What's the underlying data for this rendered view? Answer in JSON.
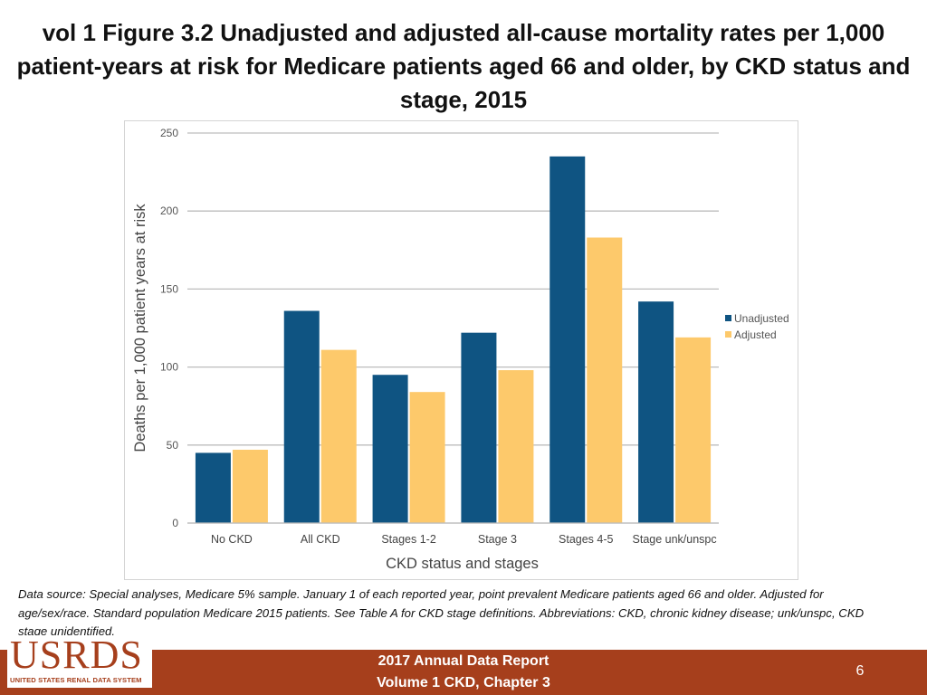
{
  "slide": {
    "title": "vol 1 Figure 3.2 Unadjusted and adjusted all-cause mortality rates per 1,000 patient-years at risk for Medicare patients aged 66 and older, by CKD status and stage, 2015",
    "caption": "Data source: Special analyses, Medicare 5% sample. January 1 of each reported year, point prevalent Medicare patients aged 66 and older. Adjusted for age/sex/race. Standard population Medicare 2015 patients. See Table A for CKD stage definitions. Abbreviations: CKD, chronic kidney disease; unk/unspc, CKD stage unidentified."
  },
  "footer": {
    "logo": "USRDS",
    "logo_sub": "UNITED STATES RENAL DATA SYSTEM",
    "line1": "2017 Annual Data Report",
    "line2": "Volume 1 CKD, Chapter 3",
    "page_number": "6",
    "bar_color": "#a63f1c"
  },
  "chart_data": {
    "type": "bar",
    "title": "",
    "xlabel": "CKD status and stages",
    "ylabel": "Deaths per 1,000 patient years at risk",
    "categories": [
      "No CKD",
      "All CKD",
      "Stages 1-2",
      "Stage 3",
      "Stages 4-5",
      "Stage unk/unspc"
    ],
    "series": [
      {
        "name": "Unadjusted",
        "color": "#0f5482",
        "values": [
          45,
          136,
          95,
          122,
          235,
          142
        ]
      },
      {
        "name": "Adjusted",
        "color": "#fdc96b",
        "values": [
          47,
          111,
          84,
          98,
          183,
          119
        ]
      }
    ],
    "ylim": [
      0,
      250
    ],
    "yticks": [
      0,
      50,
      100,
      150,
      200,
      250
    ],
    "grid": true,
    "legend_position": "right"
  }
}
